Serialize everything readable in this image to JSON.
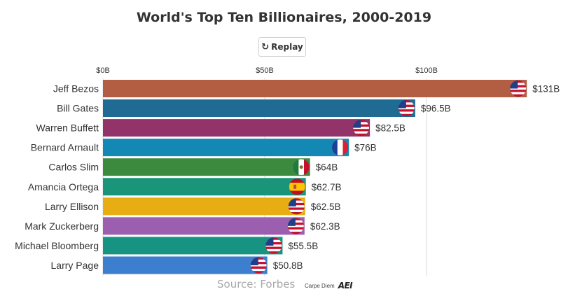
{
  "header": {
    "title": "World's Top Ten Billionaires, 2000-2019"
  },
  "controls": {
    "replay_label": "Replay",
    "replay_icon": "replay-icon"
  },
  "chart_data": {
    "type": "bar",
    "orientation": "horizontal",
    "title": "World's Top Ten Billionaires, 2000-2019",
    "xlim": [
      0,
      130
    ],
    "x_ticks": [
      {
        "value": 0,
        "label": "$0B"
      },
      {
        "value": 50,
        "label": "$50B"
      },
      {
        "value": 100,
        "label": "$100B"
      }
    ],
    "bars": [
      {
        "name": "Jeff Bezos",
        "value": 131,
        "label": "$131B",
        "color": "#b35e43",
        "flag": "usa"
      },
      {
        "name": "Bill Gates",
        "value": 96.5,
        "label": "$96.5B",
        "color": "#1f6b94",
        "flag": "usa"
      },
      {
        "name": "Warren Buffett",
        "value": 82.5,
        "label": "$82.5B",
        "color": "#92336a",
        "flag": "usa"
      },
      {
        "name": "Bernard Arnault",
        "value": 76,
        "label": "$76B",
        "color": "#1488b4",
        "flag": "france"
      },
      {
        "name": "Carlos Slim",
        "value": 64,
        "label": "$64B",
        "color": "#3c8a3e",
        "flag": "mexico"
      },
      {
        "name": "Amancia Ortega",
        "value": 62.7,
        "label": "$62.7B",
        "color": "#1a9579",
        "flag": "spain"
      },
      {
        "name": "Larry Ellison",
        "value": 62.5,
        "label": "$62.5B",
        "color": "#e8ad12",
        "flag": "usa"
      },
      {
        "name": "Mark Zuckerberg",
        "value": 62.3,
        "label": "$62.3B",
        "color": "#9c5fb0",
        "flag": "usa"
      },
      {
        "name": "Michael Bloomberg",
        "value": 55.5,
        "label": "$55.5B",
        "color": "#179382",
        "flag": "usa"
      },
      {
        "name": "Larry Page",
        "value": 50.8,
        "label": "$50.8B",
        "color": "#3d7fcf",
        "flag": "usa"
      }
    ]
  },
  "footer": {
    "source": "Source: Forbes",
    "credit_text": "Carpe Diem",
    "credit_logo": "AEI"
  }
}
